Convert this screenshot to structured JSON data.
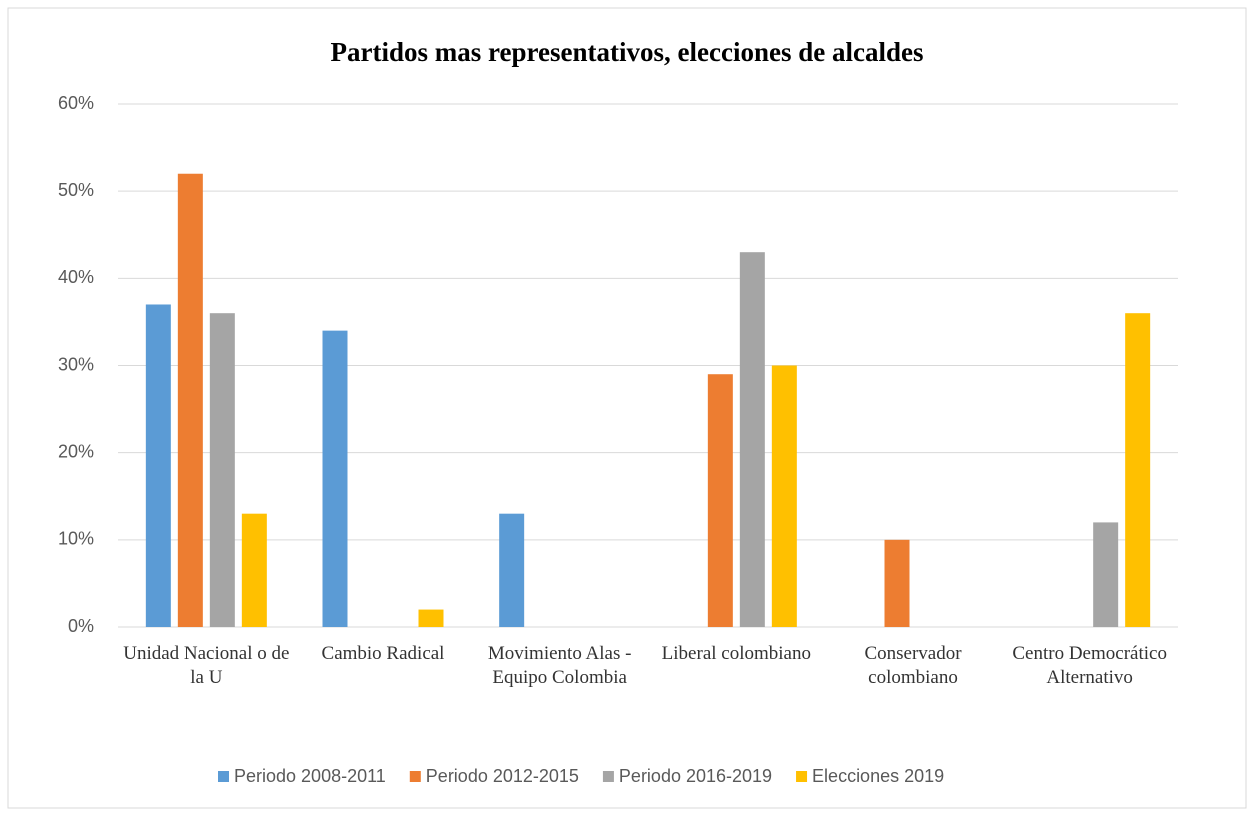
{
  "chart_data": {
    "type": "bar",
    "title": "Partidos mas representativos, elecciones de alcaldes",
    "categories": [
      "Unidad Nacional o de la U",
      "Cambio Radical",
      "Movimiento Alas - Equipo Colombia",
      "Liberal colombiano",
      "Conservador colombiano",
      "Centro Democrático Alternativo"
    ],
    "series": [
      {
        "name": "Periodo 2008-2011",
        "color": "#5b9bd5",
        "values": [
          37,
          34,
          13,
          0,
          0,
          0
        ]
      },
      {
        "name": "Periodo 2012-2015",
        "color": "#ed7d31",
        "values": [
          52,
          0,
          0,
          29,
          10,
          0
        ]
      },
      {
        "name": "Periodo 2016-2019",
        "color": "#a5a5a5",
        "values": [
          36,
          0,
          0,
          43,
          0,
          12
        ]
      },
      {
        "name": "Elecciones 2019",
        "color": "#ffc000",
        "values": [
          13,
          2,
          0,
          30,
          0,
          36
        ]
      }
    ],
    "ylim": [
      0,
      60
    ],
    "yticks": [
      {
        "value": 0,
        "label": "0%"
      },
      {
        "value": 10,
        "label": "10%"
      },
      {
        "value": 20,
        "label": "20%"
      },
      {
        "value": 30,
        "label": "30%"
      },
      {
        "value": 40,
        "label": "40%"
      },
      {
        "value": 50,
        "label": "50%"
      },
      {
        "value": 60,
        "label": "60%"
      }
    ],
    "grid": true,
    "legend": "bottom"
  }
}
